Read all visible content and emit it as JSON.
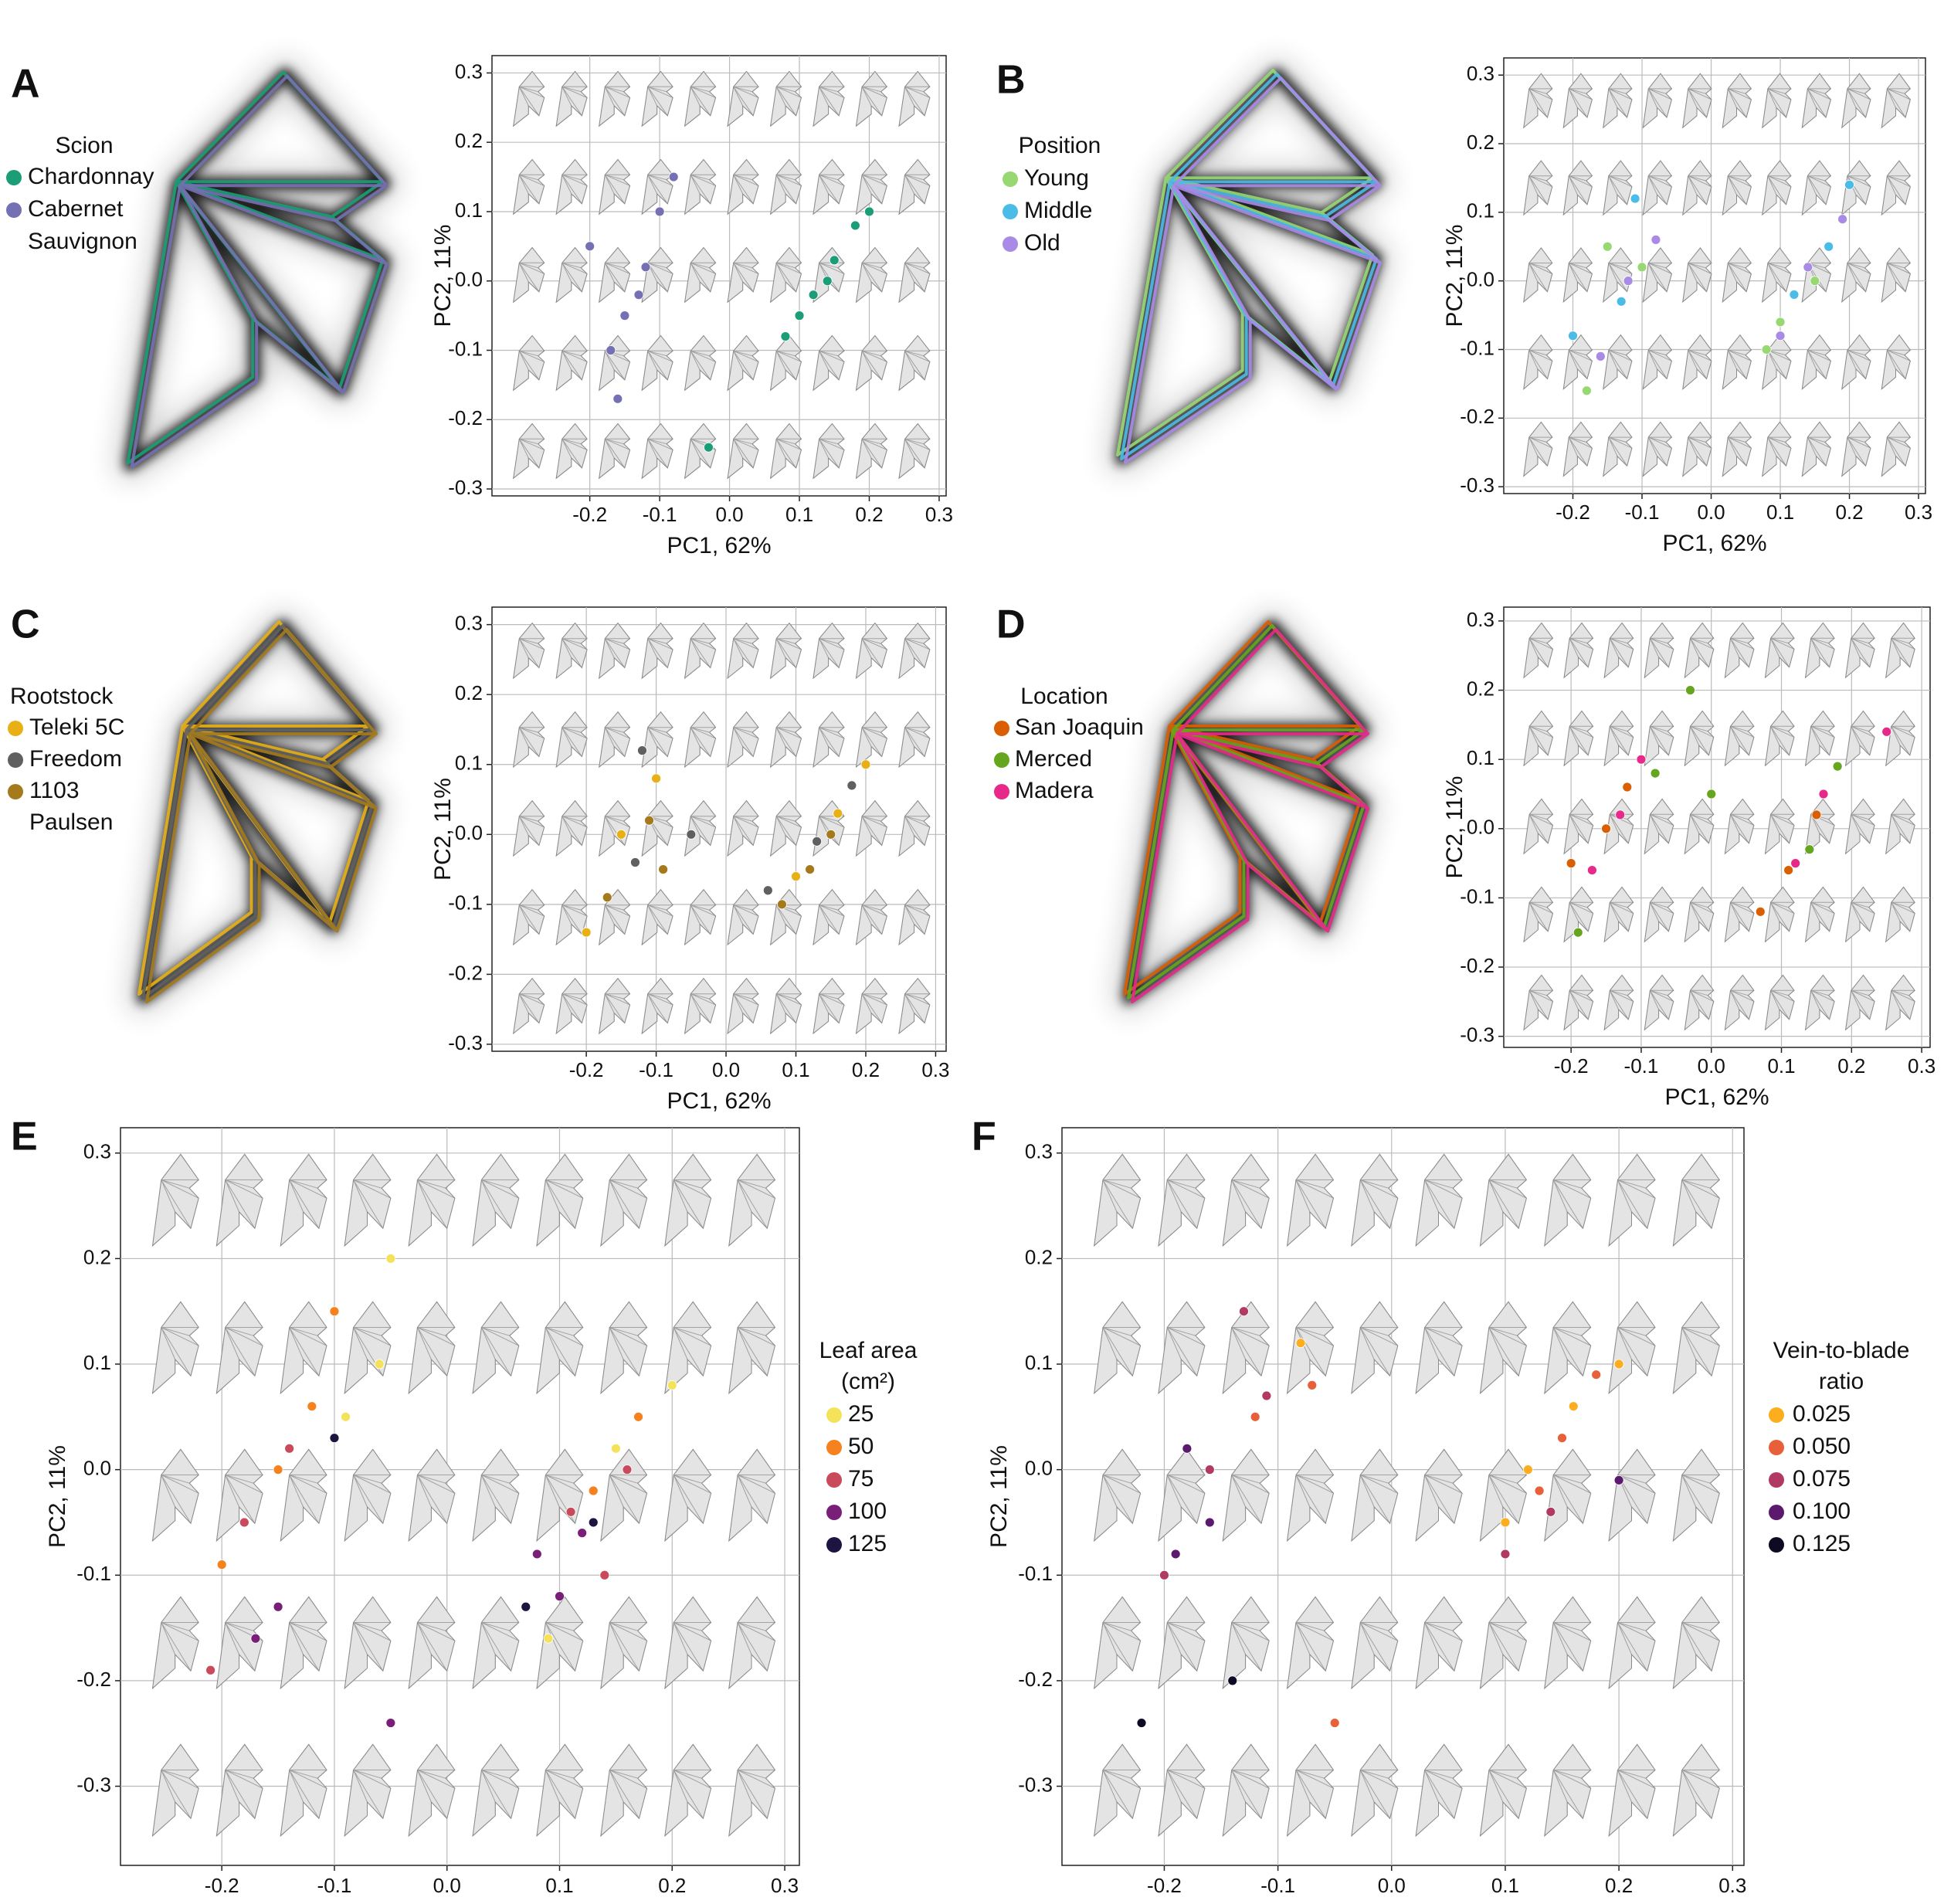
{
  "chart_data": [
    {
      "type": "scatter",
      "panel": "A",
      "legend_title": "Scion",
      "x_label": "PC1, 62%",
      "y_label": "PC2, 11%",
      "xlim": [
        -0.34,
        0.31
      ],
      "ylim": [
        -0.31,
        0.325
      ],
      "xticks": [
        -0.2,
        -0.1,
        {
          "value": 0,
          "label": "0.0"
        },
        0.1,
        0.2,
        0.3
      ],
      "yticks": [
        -0.3,
        -0.2,
        -0.1,
        {
          "value": 0,
          "label": "0.0"
        },
        0.1,
        0.2,
        0.3
      ],
      "grid": true,
      "series": [
        {
          "name": "Chardonnay",
          "color": "#1b9e77",
          "x": [
            0.08,
            0.12,
            0.15,
            0.18,
            0.1,
            0.2,
            0.14,
            -0.03
          ],
          "y": [
            -0.08,
            -0.02,
            0.03,
            0.08,
            -0.05,
            0.1,
            0.0,
            -0.24
          ]
        },
        {
          "name": "Cabernet Sauvignon",
          "color": "#7570b3",
          "x": [
            -0.2,
            -0.15,
            -0.12,
            -0.1,
            -0.17,
            -0.08,
            -0.13,
            -0.16
          ],
          "y": [
            0.05,
            -0.05,
            0.02,
            0.1,
            -0.1,
            0.15,
            -0.02,
            -0.17
          ]
        }
      ]
    },
    {
      "type": "scatter",
      "panel": "B",
      "legend_title": "Position",
      "x_label": "PC1, 62%",
      "y_label": "PC2, 11%",
      "xlim": [
        -0.3,
        0.31
      ],
      "ylim": [
        -0.31,
        0.325
      ],
      "xticks": [
        -0.2,
        -0.1,
        {
          "value": 0,
          "label": "0.0"
        },
        0.1,
        0.2,
        0.3
      ],
      "yticks": [
        -0.3,
        -0.2,
        -0.1,
        {
          "value": 0,
          "label": "0.0"
        },
        0.1,
        0.2,
        0.3
      ],
      "grid": true,
      "series": [
        {
          "name": "Young",
          "color": "#98d872",
          "x": [
            -0.15,
            -0.1,
            0.1,
            0.15,
            -0.18,
            0.08
          ],
          "y": [
            0.05,
            0.02,
            -0.06,
            0.0,
            -0.16,
            -0.1
          ]
        },
        {
          "name": "Middle",
          "color": "#4bbbe8",
          "x": [
            -0.13,
            -0.11,
            0.12,
            0.17,
            -0.2,
            0.2
          ],
          "y": [
            -0.03,
            0.12,
            -0.02,
            0.05,
            -0.08,
            0.14
          ]
        },
        {
          "name": "Old",
          "color": "#a98ae6",
          "x": [
            -0.12,
            -0.16,
            0.14,
            0.1,
            -0.08,
            0.19
          ],
          "y": [
            0.0,
            -0.11,
            0.02,
            -0.08,
            0.06,
            0.09
          ]
        }
      ]
    },
    {
      "type": "scatter",
      "panel": "C",
      "legend_title": "Rootstock",
      "x_label": "PC1, 62%",
      "y_label": "PC2, 11%",
      "xlim": [
        -0.335,
        0.315
      ],
      "ylim": [
        -0.31,
        0.325
      ],
      "xticks": [
        -0.2,
        -0.1,
        {
          "value": 0,
          "label": "0.0"
        },
        0.1,
        0.2,
        0.3
      ],
      "yticks": [
        -0.3,
        -0.2,
        -0.1,
        {
          "value": 0,
          "label": "0.0"
        },
        0.1,
        0.2,
        0.3
      ],
      "grid": true,
      "series": [
        {
          "name": "Teleki 5C",
          "color": "#e8b015",
          "x": [
            -0.15,
            -0.1,
            0.1,
            0.16,
            -0.2,
            0.2
          ],
          "y": [
            0.0,
            0.08,
            -0.06,
            0.03,
            -0.14,
            0.1
          ]
        },
        {
          "name": "Freedom",
          "color": "#606060",
          "x": [
            -0.13,
            -0.12,
            0.13,
            0.18,
            -0.05,
            0.06
          ],
          "y": [
            -0.04,
            0.12,
            -0.01,
            0.07,
            0.0,
            -0.08
          ]
        },
        {
          "name": "1103 Paulsen",
          "color": "#a47a1c",
          "x": [
            -0.11,
            -0.17,
            0.12,
            0.08,
            -0.09,
            0.15
          ],
          "y": [
            0.02,
            -0.09,
            -0.05,
            -0.1,
            -0.05,
            0.0
          ]
        }
      ]
    },
    {
      "type": "scatter",
      "panel": "D",
      "legend_title": "Location",
      "x_label": "PC1, 62%",
      "y_label": "PC2, 11%",
      "xlim": [
        -0.296,
        0.312
      ],
      "ylim": [
        -0.316,
        0.32
      ],
      "xticks": [
        -0.2,
        -0.1,
        {
          "value": 0,
          "label": "0.0"
        },
        0.1,
        0.2,
        0.3
      ],
      "yticks": [
        -0.3,
        -0.2,
        -0.1,
        {
          "value": 0,
          "label": "0.0"
        },
        0.1,
        0.2,
        0.3
      ],
      "grid": true,
      "series": [
        {
          "name": "San Joaquin",
          "color": "#d95f02",
          "x": [
            -0.2,
            -0.15,
            -0.12,
            0.11,
            0.15,
            0.07
          ],
          "y": [
            -0.05,
            0.0,
            0.06,
            -0.06,
            0.02,
            -0.12
          ]
        },
        {
          "name": "Merced",
          "color": "#66a61e",
          "x": [
            -0.08,
            -0.03,
            0.0,
            0.14,
            0.18,
            -0.19
          ],
          "y": [
            0.08,
            0.2,
            0.05,
            -0.03,
            0.09,
            -0.15
          ]
        },
        {
          "name": "Madera",
          "color": "#e7298a",
          "x": [
            -0.13,
            -0.1,
            0.12,
            0.16,
            0.25,
            -0.17
          ],
          "y": [
            0.02,
            0.1,
            -0.05,
            0.05,
            0.14,
            -0.06
          ]
        }
      ]
    },
    {
      "type": "scatter",
      "panel": "E",
      "legend_title": [
        "Leaf area",
        "(cm²)"
      ],
      "x_label": "PC1, 62%",
      "y_label": "PC2, 11%",
      "xlim": [
        -0.29,
        0.313
      ],
      "ylim": [
        -0.375,
        0.324
      ],
      "xticks": [
        -0.2,
        -0.1,
        {
          "value": 0,
          "label": "0.0"
        },
        0.1,
        0.2,
        0.3
      ],
      "yticks": [
        -0.3,
        -0.2,
        -0.1,
        {
          "value": 0,
          "label": "0.0"
        },
        0.1,
        0.2,
        0.3
      ],
      "grid": true,
      "series": [
        {
          "name": "25",
          "color": "#f4e35a",
          "x": [
            -0.09,
            -0.06,
            0.15,
            0.2,
            -0.05,
            0.09
          ],
          "y": [
            0.05,
            0.1,
            0.02,
            0.08,
            0.2,
            -0.16
          ]
        },
        {
          "name": "50",
          "color": "#f5821f",
          "x": [
            -0.15,
            -0.12,
            0.13,
            0.17,
            -0.2,
            -0.1
          ],
          "y": [
            0.0,
            0.06,
            -0.02,
            0.05,
            -0.09,
            0.15
          ]
        },
        {
          "name": "75",
          "color": "#c94a5a",
          "x": [
            -0.18,
            0.11,
            0.14,
            -0.14,
            0.16,
            -0.21
          ],
          "y": [
            -0.05,
            -0.04,
            -0.1,
            0.02,
            0.0,
            -0.19
          ]
        },
        {
          "name": "100",
          "color": "#7a1f78",
          "x": [
            -0.17,
            0.08,
            0.1,
            -0.05,
            0.12,
            -0.15
          ],
          "y": [
            -0.16,
            -0.08,
            -0.12,
            -0.24,
            -0.06,
            -0.13
          ]
        },
        {
          "name": "125",
          "color": "#1e1440",
          "x": [
            -0.1,
            0.07,
            0.13
          ],
          "y": [
            0.03,
            -0.13,
            -0.05
          ]
        }
      ]
    },
    {
      "type": "scatter",
      "panel": "F",
      "legend_title": [
        "Vein-to-blade",
        "ratio"
      ],
      "x_label": "PC1, 62%",
      "y_label": "PC2, 11%",
      "xlim": [
        -0.29,
        0.31
      ],
      "ylim": [
        -0.375,
        0.324
      ],
      "xticks": [
        -0.2,
        -0.1,
        {
          "value": 0,
          "label": "0.0"
        },
        0.1,
        0.2,
        0.3
      ],
      "yticks": [
        -0.3,
        -0.2,
        -0.1,
        {
          "value": 0,
          "label": "0.0"
        },
        0.1,
        0.2,
        0.3
      ],
      "grid": true,
      "series": [
        {
          "name": "0.025",
          "color": "#fcae1e",
          "x": [
            0.12,
            0.16,
            -0.08,
            0.2,
            0.1
          ],
          "y": [
            0.0,
            0.06,
            0.12,
            0.1,
            -0.05
          ]
        },
        {
          "name": "0.050",
          "color": "#e8603a",
          "x": [
            -0.12,
            0.13,
            0.15,
            -0.07,
            0.18,
            -0.05
          ],
          "y": [
            0.05,
            -0.02,
            0.03,
            0.08,
            0.09,
            -0.24
          ]
        },
        {
          "name": "0.075",
          "color": "#b13a65",
          "x": [
            -0.16,
            -0.11,
            0.1,
            0.14,
            -0.2,
            -0.13
          ],
          "y": [
            0.0,
            0.07,
            -0.08,
            -0.04,
            -0.1,
            0.15
          ]
        },
        {
          "name": "0.100",
          "color": "#5c1a6e",
          "x": [
            -0.19,
            -0.14,
            -0.18,
            0.2,
            -0.16
          ],
          "y": [
            -0.08,
            -0.2,
            0.02,
            -0.01,
            -0.05
          ]
        },
        {
          "name": "0.125",
          "color": "#0f0a24",
          "x": [
            -0.22,
            -0.14
          ],
          "y": [
            -0.24,
            -0.2
          ]
        }
      ]
    }
  ]
}
